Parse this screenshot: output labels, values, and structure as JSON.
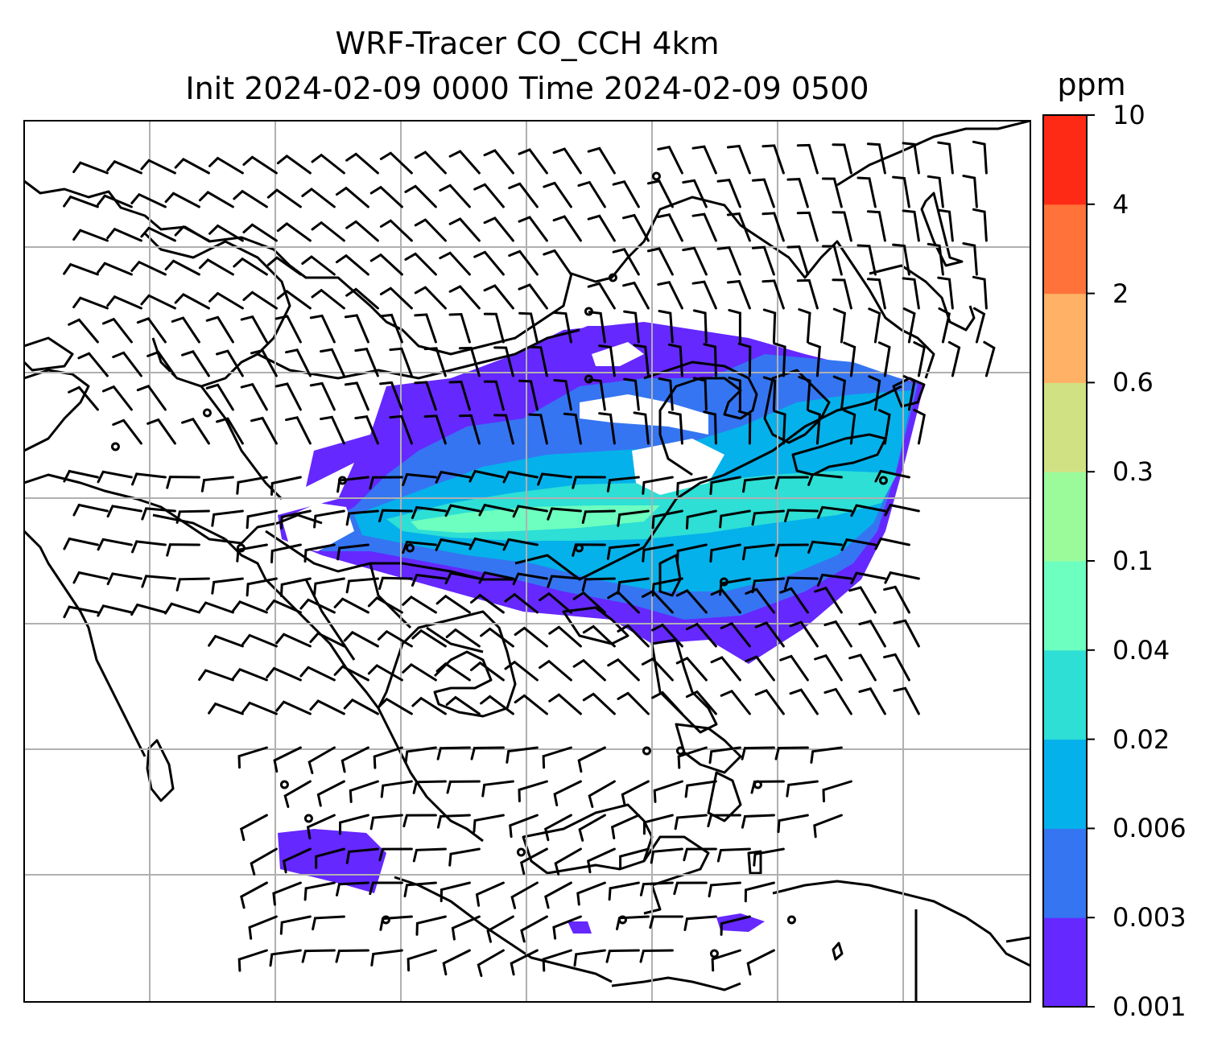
{
  "title": {
    "line1": "WRF-Tracer CO_CCH 4km",
    "line2": "Init 2024-02-09 0000 Time 2024-02-09 0500"
  },
  "colorbar": {
    "unit": "ppm",
    "levels": [
      "0.001",
      "0.003",
      "0.006",
      "0.02",
      "0.04",
      "0.1",
      "0.3",
      "0.6",
      "2",
      "4",
      "10"
    ],
    "colors": [
      "#6528ff",
      "#3575f2",
      "#05b1ea",
      "#2ddfd5",
      "#6dffbf",
      "#9bfb9b",
      "#d0e184",
      "#ffb166",
      "#ff7239",
      "#ff2a16"
    ]
  },
  "map": {
    "plume_colors": [
      "#6528ff",
      "#3575f2",
      "#05b1ea",
      "#2ddfd5",
      "#6dffbf"
    ]
  }
}
